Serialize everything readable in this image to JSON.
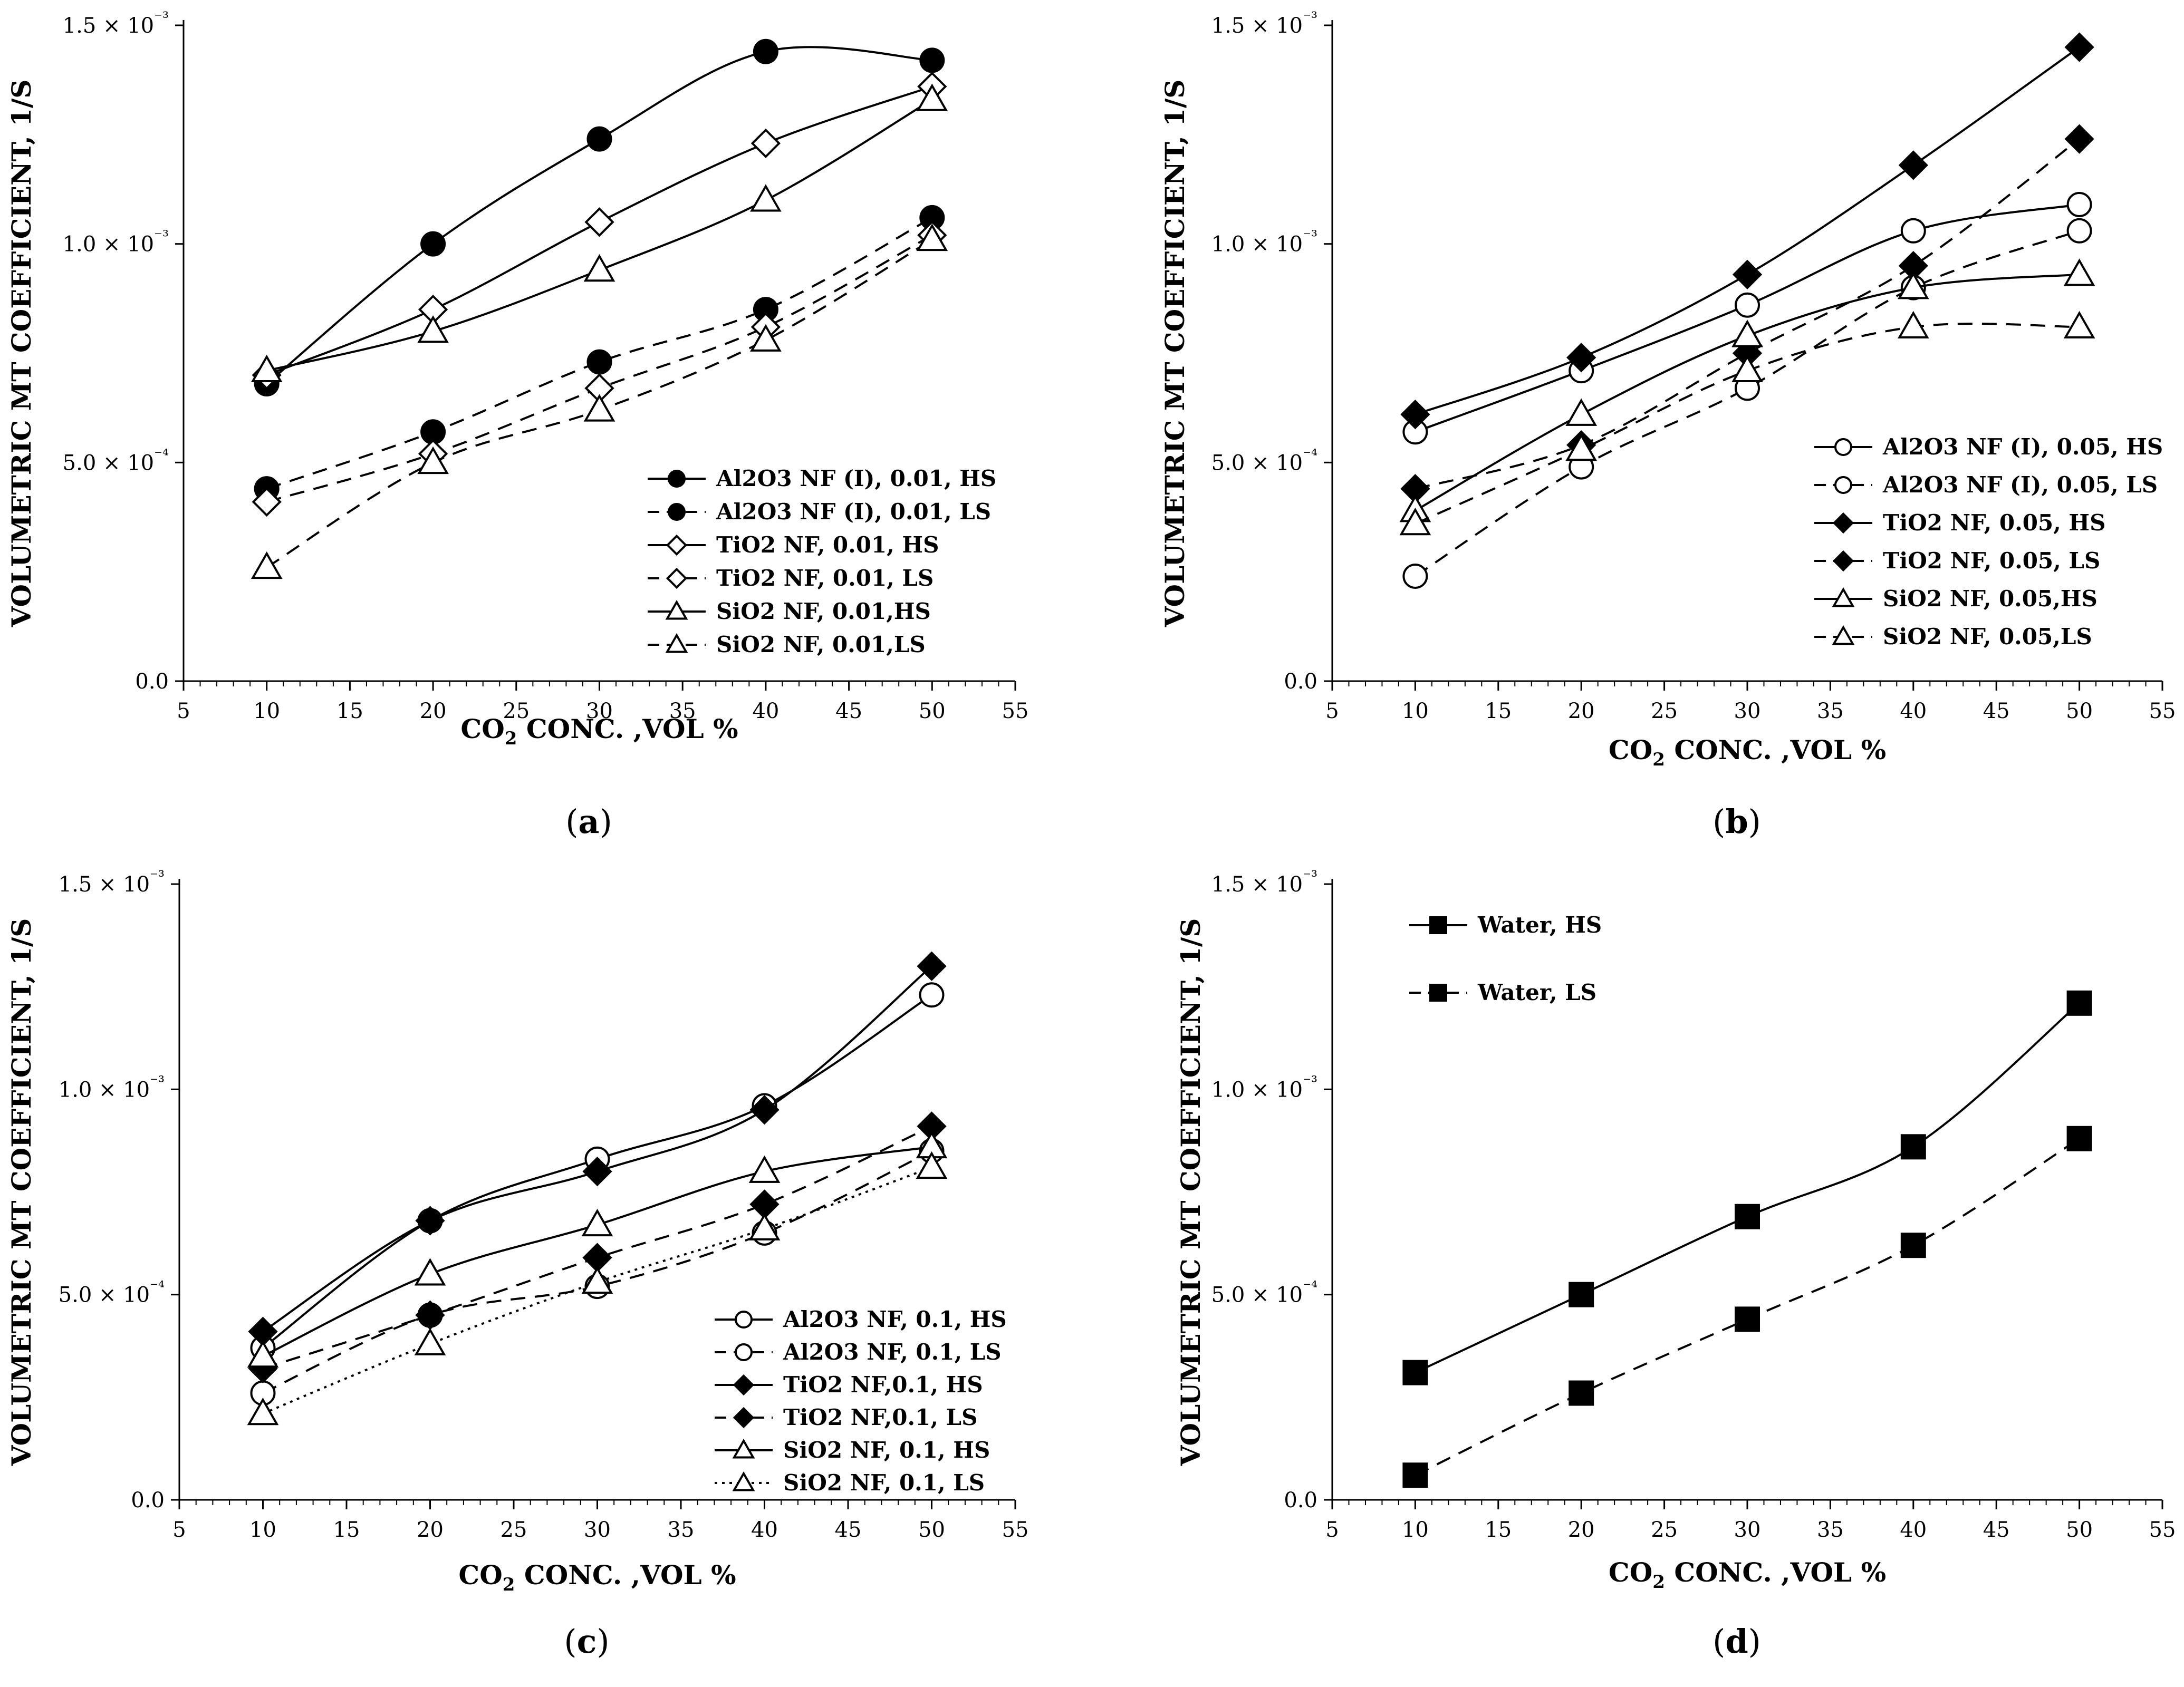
{
  "chart_data": [
    {
      "type": "line",
      "panel_label": "(a)",
      "xlabel": "CO2 CONC. ,VOL %",
      "ylabel": "VOLUMETRIC MT COEFFICIENT, 1/S",
      "xlim": [
        5,
        55
      ],
      "xticks": [
        "5",
        "10",
        "15",
        "20",
        "25",
        "30",
        "35",
        "40",
        "45",
        "50",
        "55"
      ],
      "ylim": [
        0,
        0.0015
      ],
      "yticks": [
        {
          "value": 0,
          "label": "0.0"
        },
        {
          "value": 0.0005,
          "label": "5.0 × 10⁻⁴"
        },
        {
          "value": 0.001,
          "label": "1.0 × 10⁻³"
        },
        {
          "value": 0.0015,
          "label": "1.5 × 10⁻³"
        }
      ],
      "legend_position": "bottom-right",
      "x": [
        10,
        20,
        30,
        40,
        50
      ],
      "series": [
        {
          "name": "Al2O3 NF (I), 0.01, HS",
          "marker": "circle",
          "fill": "filled",
          "line": "solid",
          "values": [
            0.00068,
            0.001,
            0.00124,
            0.00144,
            0.00142
          ]
        },
        {
          "name": "Al2O3 NF (I), 0.01, LS",
          "marker": "circle",
          "fill": "filled",
          "line": "dashed",
          "values": [
            0.00044,
            0.00057,
            0.00073,
            0.00085,
            0.00106
          ]
        },
        {
          "name": "TiO2 NF,  0.01, HS",
          "marker": "diamond",
          "fill": "open",
          "line": "solid",
          "values": [
            0.0007,
            0.00085,
            0.00105,
            0.00123,
            0.00136
          ]
        },
        {
          "name": "TiO2 NF,  0.01, LS",
          "marker": "diamond",
          "fill": "open",
          "line": "dashed",
          "values": [
            0.00041,
            0.00052,
            0.00067,
            0.00081,
            0.00102
          ]
        },
        {
          "name": "SiO2 NF, 0.01,HS",
          "marker": "triangle",
          "fill": "open",
          "line": "solid",
          "values": [
            0.00071,
            0.0008,
            0.00094,
            0.0011,
            0.00133
          ]
        },
        {
          "name": "SiO2 NF, 0.01,LS",
          "marker": "triangle",
          "fill": "open",
          "line": "dashed",
          "values": [
            0.00026,
            0.0005,
            0.00062,
            0.00078,
            0.00101
          ]
        }
      ]
    },
    {
      "type": "line",
      "panel_label": "(b)",
      "xlabel": "CO2 CONC. ,VOL %",
      "ylabel": "VOLUMETRIC MT COEFFICIENT, 1/S",
      "xlim": [
        5,
        55
      ],
      "xticks": [
        "5",
        "10",
        "15",
        "20",
        "25",
        "30",
        "35",
        "40",
        "45",
        "50",
        "55"
      ],
      "ylim": [
        0,
        0.0015
      ],
      "yticks": [
        {
          "value": 0,
          "label": "0.0"
        },
        {
          "value": 0.0005,
          "label": "5.0 × 10⁻⁴"
        },
        {
          "value": 0.001,
          "label": "1.0 × 10⁻³"
        },
        {
          "value": 0.0015,
          "label": "1.5 × 10⁻³"
        }
      ],
      "legend_position": "bottom-right",
      "x": [
        10,
        20,
        30,
        40,
        50
      ],
      "series": [
        {
          "name": "Al2O3 NF (I), 0.05, HS",
          "marker": "circle",
          "fill": "open",
          "line": "solid",
          "values": [
            0.00057,
            0.00071,
            0.00086,
            0.00103,
            0.00109
          ]
        },
        {
          "name": "Al2O3 NF (I), 0.05, LS",
          "marker": "circle",
          "fill": "open",
          "line": "dashed",
          "values": [
            0.00024,
            0.00049,
            0.00067,
            0.0009,
            0.00103
          ]
        },
        {
          "name": "TiO2 NF, 0.05, HS",
          "marker": "diamond",
          "fill": "filled",
          "line": "solid",
          "values": [
            0.00061,
            0.00074,
            0.00093,
            0.00118,
            0.00145
          ]
        },
        {
          "name": "TiO2 NF, 0.05, LS",
          "marker": "diamond",
          "fill": "filled",
          "line": "dashed",
          "values": [
            0.00044,
            0.00054,
            0.00075,
            0.00095,
            0.00124
          ]
        },
        {
          "name": "SiO2 NF, 0.05,HS",
          "marker": "triangle",
          "fill": "open",
          "line": "solid",
          "values": [
            0.00039,
            0.00061,
            0.00079,
            0.0009,
            0.00093
          ]
        },
        {
          "name": "SiO2 NF, 0.05,LS",
          "marker": "triangle",
          "fill": "open",
          "line": "dashed",
          "values": [
            0.00036,
            0.00053,
            0.00071,
            0.00081,
            0.00081
          ]
        }
      ]
    },
    {
      "type": "line",
      "panel_label": "(c)",
      "xlabel": "CO2 CONC. ,VOL %",
      "ylabel": "VOLUMETRIC MT COEFFICIENT, 1/S",
      "xlim": [
        5,
        55
      ],
      "xticks": [
        "5",
        "10",
        "15",
        "20",
        "25",
        "30",
        "35",
        "40",
        "45",
        "50",
        "55"
      ],
      "ylim": [
        0,
        0.0015
      ],
      "yticks": [
        {
          "value": 0,
          "label": "0.0"
        },
        {
          "value": 0.0005,
          "label": "5.0 × 10⁻⁴"
        },
        {
          "value": 0.001,
          "label": "1.0 × 10⁻³"
        },
        {
          "value": 0.0015,
          "label": "1.5 × 10⁻³"
        }
      ],
      "legend_position": "bottom-right",
      "x": [
        10,
        20,
        30,
        40,
        50
      ],
      "series": [
        {
          "name": "Al2O3 NF, 0.1, HS",
          "marker": "circle",
          "fill": "open",
          "line": "solid",
          "values": [
            0.00037,
            0.00068,
            0.00083,
            0.00096,
            0.00123
          ]
        },
        {
          "name": "Al2O3 NF, 0.1, LS",
          "marker": "circle",
          "fill": "open",
          "line": "dashed",
          "values": [
            0.00026,
            0.00045,
            0.00052,
            0.00065,
            0.00085
          ]
        },
        {
          "name": "TiO2 NF,0.1, HS",
          "marker": "diamond",
          "fill": "filled",
          "line": "solid",
          "values": [
            0.00041,
            0.00068,
            0.0008,
            0.00095,
            0.0013
          ]
        },
        {
          "name": "TiO2 NF,0.1, LS",
          "marker": "diamond",
          "fill": "filled",
          "line": "dashed",
          "values": [
            0.00032,
            0.00045,
            0.00059,
            0.00072,
            0.00091
          ]
        },
        {
          "name": "SiO2 NF, 0.1, HS",
          "marker": "triangle",
          "fill": "open",
          "line": "solid",
          "values": [
            0.00035,
            0.00055,
            0.00067,
            0.0008,
            0.00086
          ]
        },
        {
          "name": "SiO2 NF, 0.1, LS",
          "marker": "triangle",
          "fill": "open",
          "line": "dotted",
          "values": [
            0.00021,
            0.00038,
            0.00053,
            0.00066,
            0.00081
          ]
        }
      ]
    },
    {
      "type": "line",
      "panel_label": "(d)",
      "xlabel": "CO2 CONC. ,VOL %",
      "ylabel": "VOLUMETRIC MT COEFFICIENT, 1/S",
      "xlim": [
        5,
        55
      ],
      "xticks": [
        "5",
        "10",
        "15",
        "20",
        "25",
        "30",
        "35",
        "40",
        "45",
        "50",
        "55"
      ],
      "ylim": [
        0,
        0.0015
      ],
      "yticks": [
        {
          "value": 0,
          "label": "0.0"
        },
        {
          "value": 0.0005,
          "label": "5.0 × 10⁻⁴"
        },
        {
          "value": 0.001,
          "label": "1.0 × 10⁻³"
        },
        {
          "value": 0.0015,
          "label": "1.5 × 10⁻³"
        }
      ],
      "legend_position": "top-left",
      "x": [
        10,
        20,
        30,
        40,
        50
      ],
      "series": [
        {
          "name": "Water, HS",
          "marker": "square",
          "fill": "filled",
          "line": "solid",
          "values": [
            0.00031,
            0.0005,
            0.00069,
            0.00086,
            0.00121
          ]
        },
        {
          "name": "Water, LS",
          "marker": "square",
          "fill": "filled",
          "line": "dashed",
          "values": [
            6e-05,
            0.00026,
            0.00044,
            0.00062,
            0.00088
          ]
        }
      ]
    }
  ]
}
